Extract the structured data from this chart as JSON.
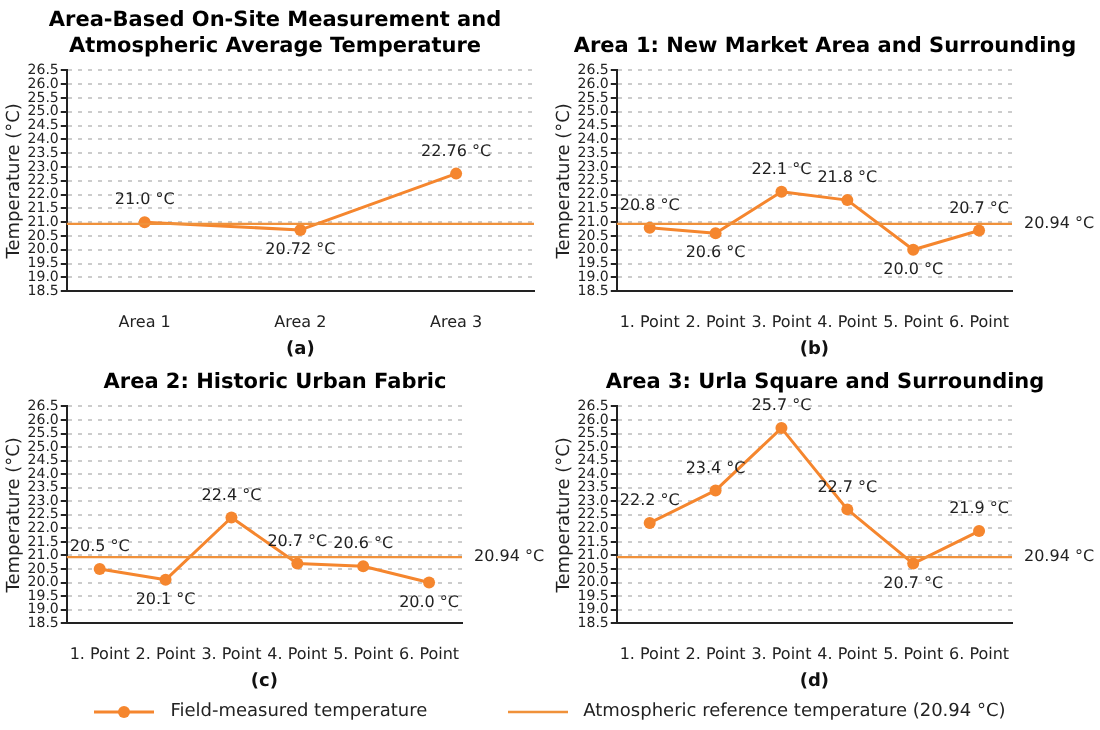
{
  "chart_data": [
    {
      "type": "line",
      "title": "Area-Based On-Site Measurement and Atmospheric Average Temperature",
      "xlabel": "(a)",
      "ylabel": "Temperature (°C)",
      "categories": [
        "Area 1",
        "Area 2",
        "Area 3"
      ],
      "series": [
        {
          "name": "Field-measured temperature",
          "color": "#f5862e",
          "values": [
            21.0,
            20.72,
            22.76
          ],
          "value_labels": [
            "21.0 °C",
            "20.72 °C",
            "22.76 °C"
          ]
        }
      ],
      "ylim": [
        18.5,
        26.5
      ],
      "yticks": [
        18.5,
        {
          "value": 19,
          "label": "19.0"
        },
        19.5,
        {
          "value": 20,
          "label": "20.0"
        },
        20.5,
        {
          "value": 21,
          "label": "21.0"
        },
        21.5,
        {
          "value": 22,
          "label": "22.0"
        },
        22.5,
        {
          "value": 23,
          "label": "23.0"
        },
        23.5,
        {
          "value": 24,
          "label": "24.0"
        },
        24.5,
        {
          "value": 25,
          "label": "25.0"
        },
        25.5,
        {
          "value": 26,
          "label": "26.0"
        },
        26.5
      ],
      "grid": "y",
      "marker": "circle",
      "line_style": "solid",
      "legend": "bottom",
      "ref_lines": [
        {
          "axis": "y",
          "value": 20.94,
          "label": "Atmospheric reference temperature (20.94 °C)",
          "color": "#f0913a"
        }
      ]
    },
    {
      "type": "line",
      "title": "Area 1: New Market Area and Surrounding",
      "xlabel": "(b)",
      "ylabel": "Temperature (°C)",
      "categories": [
        "1. Point",
        "2. Point",
        "3. Point",
        "4. Point",
        "5. Point",
        "6. Point"
      ],
      "series": [
        {
          "color": "#f5862e",
          "values": [
            20.8,
            20.6,
            22.1,
            21.8,
            20.0,
            20.7
          ],
          "value_labels": [
            "20.8 °C",
            "20.6 °C",
            "22.1 °C",
            "21.8 °C",
            "20.0 °C",
            "20.7 °C"
          ]
        }
      ],
      "ylim": [
        18.5,
        26.5
      ],
      "yticks": [
        18.5,
        {
          "value": 19,
          "label": "19.0"
        },
        19.5,
        {
          "value": 20,
          "label": "20.0"
        },
        20.5,
        {
          "value": 21,
          "label": "21.0"
        },
        21.5,
        {
          "value": 22,
          "label": "22.0"
        },
        22.5,
        {
          "value": 23,
          "label": "23.0"
        },
        23.5,
        {
          "value": 24,
          "label": "24.0"
        },
        24.5,
        {
          "value": 25,
          "label": "25.0"
        },
        25.5,
        {
          "value": 26,
          "label": "26.0"
        },
        26.5
      ],
      "grid": "y",
      "marker": "circle",
      "line_style": "solid",
      "ref_lines": [
        {
          "axis": "y",
          "value": 20.94,
          "label": "20.94 °C",
          "color": "#f0913a"
        }
      ]
    },
    {
      "type": "line",
      "title": "Area 2: Historic Urban Fabric",
      "xlabel": "(c)",
      "ylabel": "Temperature (°C)",
      "categories": [
        "1. Point",
        "2. Point",
        "3. Point",
        "4. Point",
        "5. Point",
        "6. Point"
      ],
      "series": [
        {
          "color": "#f5862e",
          "values": [
            20.5,
            20.1,
            22.4,
            20.7,
            20.6,
            20.0
          ],
          "value_labels": [
            "20.5 °C",
            "20.1 °C",
            "22.4 °C",
            "20.7 °C",
            "20.6 °C",
            "20.0 °C"
          ]
        }
      ],
      "ylim": [
        18.5,
        26.5
      ],
      "yticks": [
        18.5,
        {
          "value": 19,
          "label": "19.0"
        },
        19.5,
        {
          "value": 20,
          "label": "20.0"
        },
        20.5,
        {
          "value": 21,
          "label": "21.0"
        },
        21.5,
        {
          "value": 22,
          "label": "22.0"
        },
        22.5,
        {
          "value": 23,
          "label": "23.0"
        },
        23.5,
        {
          "value": 24,
          "label": "24.0"
        },
        24.5,
        {
          "value": 25,
          "label": "25.0"
        },
        25.5,
        {
          "value": 26,
          "label": "26.0"
        },
        26.5
      ],
      "grid": "y",
      "marker": "circle",
      "line_style": "solid",
      "ref_lines": [
        {
          "axis": "y",
          "value": 20.94,
          "label": "20.94 °C",
          "color": "#f0913a"
        }
      ]
    },
    {
      "type": "line",
      "title": "Area 3: Urla Square and Surrounding",
      "xlabel": "(d)",
      "ylabel": "Temperature (°C)",
      "categories": [
        "1. Point",
        "2. Point",
        "3. Point",
        "4. Point",
        "5. Point",
        "6. Point"
      ],
      "series": [
        {
          "color": "#f5862e",
          "values": [
            22.2,
            23.4,
            25.7,
            22.7,
            20.7,
            21.9
          ],
          "value_labels": [
            "22.2 °C",
            "23.4 °C",
            "25.7 °C",
            "22.7 °C",
            "20.7 °C",
            "21.9 °C"
          ]
        }
      ],
      "ylim": [
        18.5,
        26.5
      ],
      "yticks": [
        18.5,
        {
          "value": 19,
          "label": "19.0"
        },
        19.5,
        {
          "value": 20,
          "label": "20.0"
        },
        20.5,
        {
          "value": 21,
          "label": "21.0"
        },
        21.5,
        {
          "value": 22,
          "label": "22.0"
        },
        22.5,
        {
          "value": 23,
          "label": "23.0"
        },
        23.5,
        {
          "value": 24,
          "label": "24.0"
        },
        24.5,
        {
          "value": 25,
          "label": "25.0"
        },
        25.5,
        {
          "value": 26,
          "label": "26.0"
        },
        26.5
      ],
      "grid": "y",
      "marker": "circle",
      "line_style": "solid",
      "ref_lines": [
        {
          "axis": "y",
          "value": 20.94,
          "label": "20.94 °C",
          "color": "#f0913a"
        }
      ]
    }
  ]
}
